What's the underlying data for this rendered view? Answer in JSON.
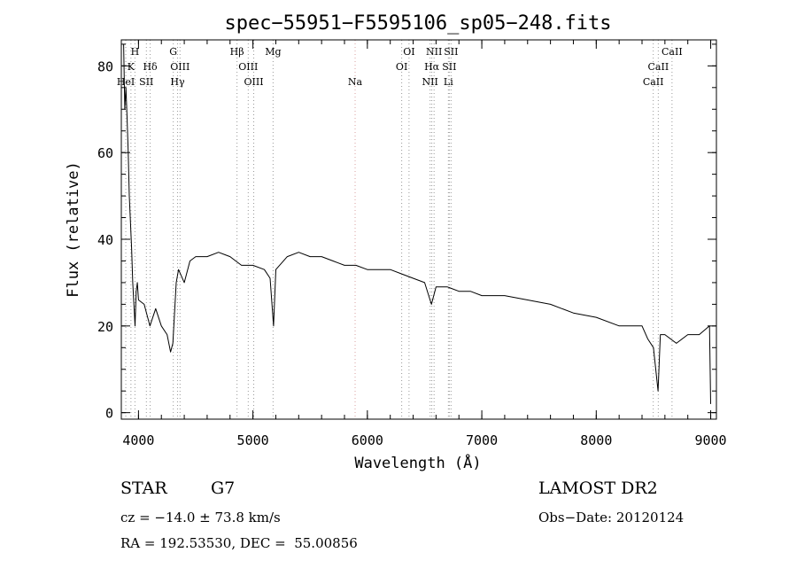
{
  "chart_data": {
    "type": "line",
    "title": "spec−55951−F5595106_sp05−248.fits",
    "xlabel": "Wavelength (Å)",
    "ylabel": "Flux (relative)",
    "xlim": [
      3850,
      9050
    ],
    "ylim": [
      -1.5,
      86
    ],
    "xticks": [
      4000,
      5000,
      6000,
      7000,
      8000,
      9000
    ],
    "yticks": [
      0,
      20,
      40,
      60,
      80
    ],
    "series": [
      {
        "x": [
          3870,
          3880,
          3890,
          3900,
          3910,
          3920,
          3930,
          3940,
          3950,
          3960,
          3970,
          3980,
          3990,
          4000,
          4050,
          4100,
          4150,
          4200,
          4250,
          4280,
          4300,
          4330,
          4350,
          4400,
          4450,
          4500,
          4600,
          4700,
          4800,
          4850,
          4900,
          5000,
          5100,
          5150,
          5180,
          5200,
          5300,
          5400,
          5500,
          5600,
          5700,
          5800,
          5900,
          6000,
          6100,
          6200,
          6300,
          6400,
          6500,
          6560,
          6600,
          6700,
          6800,
          6900,
          7000,
          7200,
          7400,
          7600,
          7800,
          8000,
          8200,
          8400,
          8450,
          8500,
          8540,
          8560,
          8600,
          8650,
          8700,
          8800,
          8900,
          8990,
          9000
        ],
        "y": [
          85,
          70,
          75,
          68,
          60,
          50,
          44,
          38,
          30,
          25,
          20,
          28,
          30,
          26,
          25,
          20,
          24,
          20,
          18,
          14,
          16,
          30,
          33,
          30,
          35,
          36,
          36,
          37,
          36,
          35,
          34,
          34,
          33,
          31,
          20,
          33,
          36,
          37,
          36,
          36,
          35,
          34,
          34,
          33,
          33,
          33,
          32,
          31,
          30,
          25,
          29,
          29,
          28,
          28,
          27,
          27,
          26,
          25,
          23,
          22,
          20,
          20,
          17,
          15,
          5,
          18,
          18,
          17,
          16,
          18,
          18,
          20,
          2
        ]
      }
    ],
    "lines": [
      {
        "name": "H",
        "row": 1,
        "x": 3969,
        "color": "gray"
      },
      {
        "name": "K",
        "row": 2,
        "x": 3934,
        "color": "gray"
      },
      {
        "name": "Hδ",
        "row": 2,
        "x": 4102,
        "color": "gray"
      },
      {
        "name": "HeI",
        "row": 3,
        "x": 3889,
        "color": "gray"
      },
      {
        "name": "SII",
        "row": 3,
        "x": 4069,
        "color": "gray"
      },
      {
        "name": "G",
        "row": 1,
        "x": 4304,
        "color": "gray"
      },
      {
        "name": "OIII",
        "row": 2,
        "x": 4363,
        "color": "gray"
      },
      {
        "name": "Hγ",
        "row": 3,
        "x": 4341,
        "color": "gray"
      },
      {
        "name": "Hβ",
        "row": 1,
        "x": 4861,
        "color": "gray"
      },
      {
        "name": "OIII",
        "row": 2,
        "x": 4959,
        "color": "gray"
      },
      {
        "name": "OIII",
        "row": 3,
        "x": 5007,
        "color": "gray"
      },
      {
        "name": "Mg",
        "row": 1,
        "x": 5176,
        "color": "gray"
      },
      {
        "name": "Na",
        "row": 3,
        "x": 5893,
        "color": "red"
      },
      {
        "name": "OI",
        "row": 1,
        "x": 6364,
        "color": "gray"
      },
      {
        "name": "OI",
        "row": 2,
        "x": 6300,
        "color": "gray"
      },
      {
        "name": "NII",
        "row": 1,
        "x": 6583,
        "color": "gray"
      },
      {
        "name": "SII",
        "row": 1,
        "x": 6731,
        "color": "gray"
      },
      {
        "name": "Hα",
        "row": 2,
        "x": 6563,
        "color": "gray"
      },
      {
        "name": "SII",
        "row": 2,
        "x": 6716,
        "color": "gray"
      },
      {
        "name": "NII",
        "row": 3,
        "x": 6548,
        "color": "gray"
      },
      {
        "name": "Li",
        "row": 3,
        "x": 6708,
        "color": "gray"
      },
      {
        "name": "CaII",
        "row": 1,
        "x": 8662,
        "color": "gray"
      },
      {
        "name": "CaII",
        "row": 2,
        "x": 8542,
        "color": "gray"
      },
      {
        "name": "CaII",
        "row": 3,
        "x": 8498,
        "color": "gray"
      }
    ]
  },
  "info": {
    "object_class": "STAR",
    "subclass": "G7",
    "survey": "LAMOST DR2",
    "cz": "cz = −14.0 ± 73.8 km/s",
    "obs_date": "Obs−Date: 20120124",
    "coords": "RA = 192.53530, DEC =  55.00856"
  }
}
